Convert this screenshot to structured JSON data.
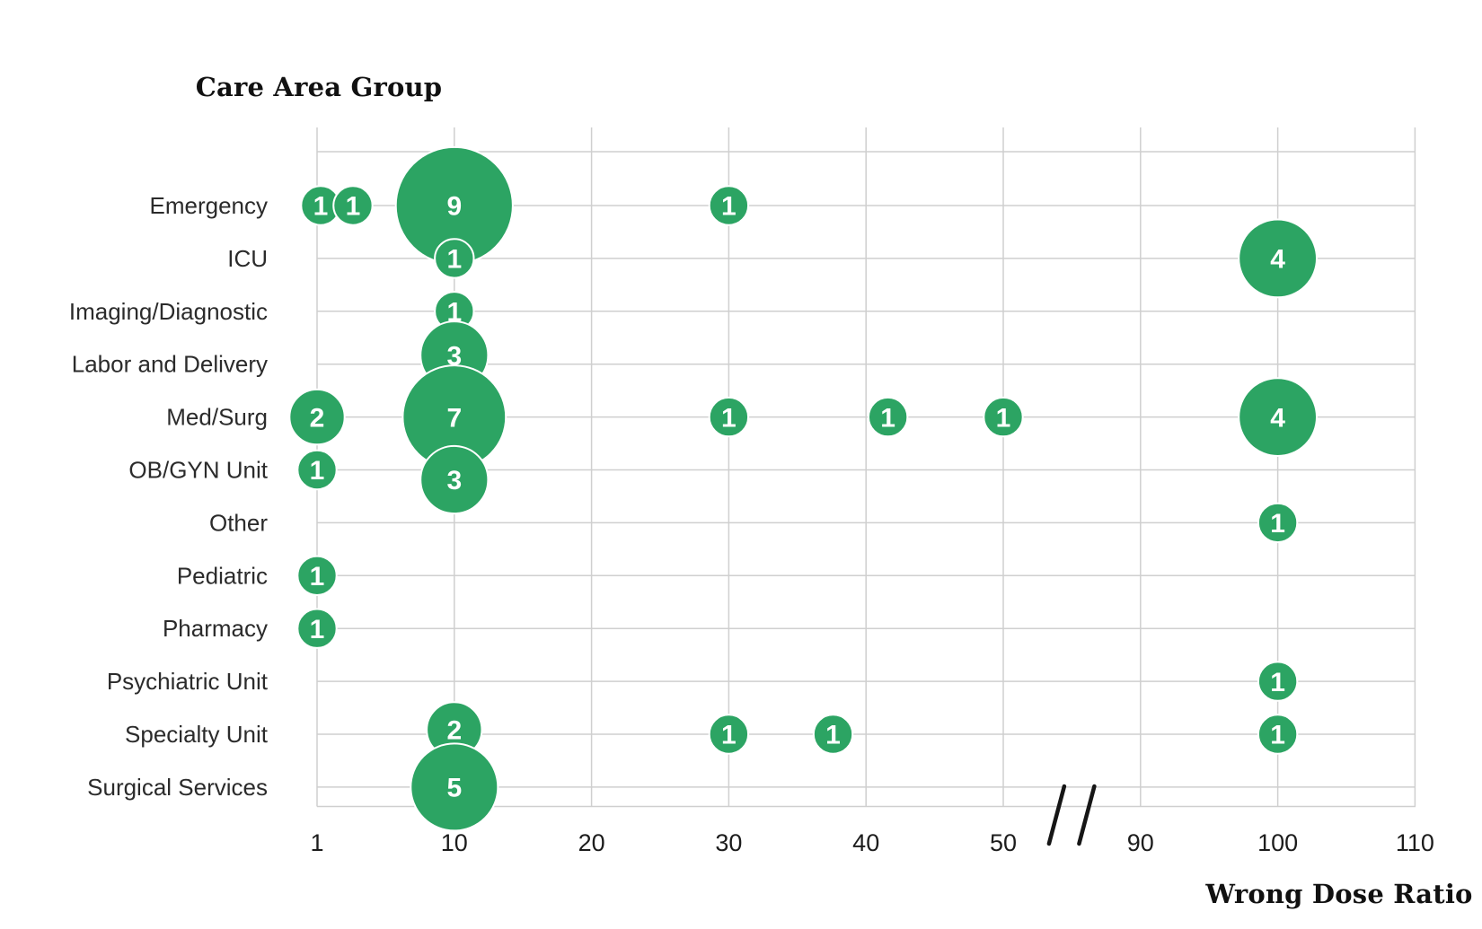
{
  "titles": {
    "y_axis": "Care Area Group",
    "x_axis": "Wrong Dose Ratio"
  },
  "colors": {
    "background": "#ffffff",
    "bubble_fill": "#2CA463",
    "bubble_stroke": "#ffffff",
    "bubble_label": "#ffffff",
    "grid": "#cfcfcf",
    "tick_text": "#1c1c1c",
    "category_text": "#2b2b2b",
    "title_text": "#111111",
    "break_mark": "#161616"
  },
  "chart_data": {
    "type": "scatter",
    "subtype": "bubble",
    "title": "",
    "xlabel": "Wrong Dose Ratio",
    "ylabel": "Care Area Group",
    "size_encoding": "bubble area proportional to count; label inside bubble is the count",
    "grid": "on",
    "x_ticks": [
      1,
      10,
      20,
      30,
      40,
      50,
      90,
      100,
      110
    ],
    "axis_break": {
      "between": [
        50,
        90
      ],
      "style": "double-slash"
    },
    "categories": [
      "Emergency",
      "ICU",
      "Imaging/Diagnostic",
      "Labor and Delivery",
      "Med/Surg",
      "OB/GYN Unit",
      "Other",
      "Pediatric",
      "Pharmacy",
      "Psychiatric Unit",
      "Specialty Unit",
      "Surgical Services"
    ],
    "points": [
      {
        "category": "Emergency",
        "x": 1,
        "count": 1,
        "dx": 4
      },
      {
        "category": "Emergency",
        "x": 3,
        "count": 1,
        "dx": 6
      },
      {
        "category": "Emergency",
        "x": 10,
        "count": 9
      },
      {
        "category": "Emergency",
        "x": 30,
        "count": 1
      },
      {
        "category": "ICU",
        "x": 10,
        "count": 1
      },
      {
        "category": "ICU",
        "x": 100,
        "count": 4
      },
      {
        "category": "Imaging/Diagnostic",
        "x": 10,
        "count": 1
      },
      {
        "category": "Labor and Delivery",
        "x": 10,
        "count": 3,
        "dy": -10
      },
      {
        "category": "Med/Surg",
        "x": 1,
        "count": 2
      },
      {
        "category": "Med/Surg",
        "x": 10,
        "count": 7
      },
      {
        "category": "Med/Surg",
        "x": 30,
        "count": 1
      },
      {
        "category": "Med/Surg",
        "x": 41.6,
        "count": 1
      },
      {
        "category": "Med/Surg",
        "x": 50,
        "count": 1
      },
      {
        "category": "Med/Surg",
        "x": 100,
        "count": 4
      },
      {
        "category": "OB/GYN Unit",
        "x": 1,
        "count": 1
      },
      {
        "category": "OB/GYN Unit",
        "x": 10,
        "count": 3,
        "dy": 11
      },
      {
        "category": "Other",
        "x": 100,
        "count": 1
      },
      {
        "category": "Pediatric",
        "x": 1,
        "count": 1
      },
      {
        "category": "Pharmacy",
        "x": 1,
        "count": 1
      },
      {
        "category": "Psychiatric Unit",
        "x": 100,
        "count": 1
      },
      {
        "category": "Specialty Unit",
        "x": 10,
        "count": 2,
        "dy": -5
      },
      {
        "category": "Specialty Unit",
        "x": 30,
        "count": 1
      },
      {
        "category": "Specialty Unit",
        "x": 37.6,
        "count": 1
      },
      {
        "category": "Specialty Unit",
        "x": 100,
        "count": 1
      },
      {
        "category": "Surgical Services",
        "x": 10,
        "count": 5
      }
    ]
  }
}
